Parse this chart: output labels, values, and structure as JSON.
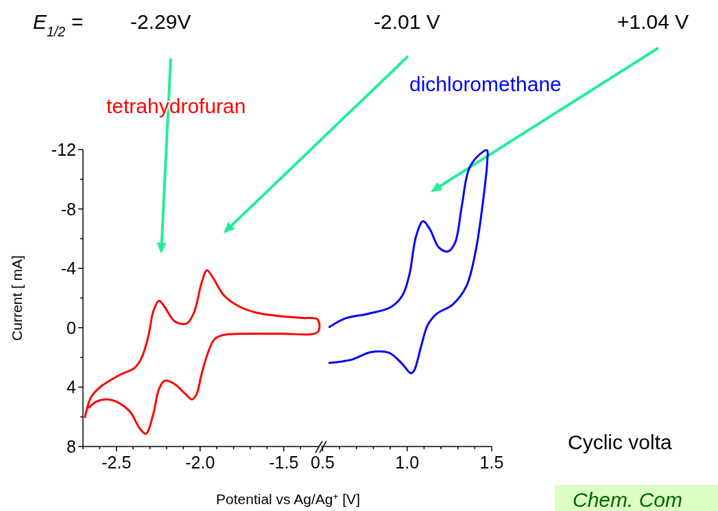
{
  "chart_data": [
    {
      "type": "line",
      "ylabel": "Current [ mA]",
      "xlim": [
        -2.7,
        -1.29
      ],
      "xticks": [
        {
          "value": -2.7,
          "label": null
        },
        {
          "value": -2.6,
          "label": null
        },
        -2.5,
        {
          "value": -2.4,
          "label": null
        },
        {
          "value": -2.3,
          "label": null
        },
        {
          "value": -2.2,
          "label": null
        },
        {
          "value": -2.1,
          "label": null
        },
        {
          "value": -2.0,
          "label": "-2.0"
        },
        {
          "value": -1.9,
          "label": null
        },
        {
          "value": -1.8,
          "label": null
        },
        {
          "value": -1.7,
          "label": null
        },
        {
          "value": -1.6,
          "label": null
        },
        -1.5,
        {
          "value": -1.4,
          "label": null
        }
      ],
      "ylim": [
        8,
        -12
      ],
      "yticks": [
        8,
        {
          "value": 6,
          "label": null
        },
        4,
        {
          "value": 2,
          "label": null
        },
        0,
        {
          "value": -2,
          "label": null
        },
        -4,
        {
          "value": -6,
          "label": null
        },
        -8,
        {
          "value": -10,
          "label": null
        },
        -12
      ],
      "series": [
        {
          "name": "tetrahydrofuran",
          "color": "#ff0000",
          "x": [
            -2.688,
            -2.65,
            -2.594,
            -2.487,
            -2.389,
            -2.348,
            -2.307,
            -2.28,
            -2.246,
            -2.212,
            -2.157,
            -2.102,
            -2.075,
            -2.034,
            -1.993,
            -1.959,
            -1.925,
            -1.857,
            -1.775,
            -1.666,
            -1.529,
            -1.392,
            -1.297,
            -1.297,
            -1.529,
            -1.857,
            -1.912,
            -1.953,
            -1.993,
            -2.02,
            -2.048,
            -2.089,
            -2.157,
            -2.212,
            -2.246,
            -2.28,
            -2.324,
            -2.362,
            -2.417,
            -2.485,
            -2.553,
            -2.622,
            -2.663
          ],
          "values": [
            6.02,
            4.64,
            3.97,
            3.22,
            2.68,
            1.99,
            0.45,
            -1.09,
            -1.82,
            -1.4,
            -0.48,
            -0.25,
            -0.32,
            -1.09,
            -2.94,
            -3.87,
            -3.4,
            -2.17,
            -1.48,
            -1.02,
            -0.79,
            -0.66,
            -0.55,
            0.29,
            0.4,
            0.48,
            0.75,
            1.68,
            3.22,
            4.45,
            4.83,
            4.45,
            3.76,
            3.57,
            4.14,
            5.83,
            7.14,
            6.76,
            5.68,
            5.07,
            4.83,
            4.99,
            5.37
          ]
        }
      ],
      "annotations": [
        "E$_{1/2}$ =",
        "-2.29V",
        "-2.01 V",
        "+1.04 V",
        "Cyclic volta",
        "Chem. Com"
      ]
    },
    {
      "type": "line",
      "xlabel": "Potential vs Ag/Ag$^{+}$ [V]",
      "xlim": [
        0.49,
        1.5
      ],
      "xticks": [
        0.5,
        {
          "value": 0.6,
          "label": null
        },
        {
          "value": 0.7,
          "label": null
        },
        {
          "value": 0.8,
          "label": null
        },
        {
          "value": 0.9,
          "label": null
        },
        {
          "value": 1.0,
          "label": "1.0"
        },
        {
          "value": 1.1,
          "label": null
        },
        {
          "value": 1.2,
          "label": null
        },
        {
          "value": 1.3,
          "label": null
        },
        {
          "value": 1.4,
          "label": null
        },
        1.5
      ],
      "ylim": [
        8,
        -12
      ],
      "tick_labels": "x",
      "series": [
        {
          "name": "dichloromethane",
          "color": "#0000ff",
          "x": [
            0.54,
            0.635,
            0.77,
            0.905,
            0.972,
            1.013,
            1.053,
            1.094,
            1.134,
            1.188,
            1.242,
            1.283,
            1.323,
            1.364,
            1.418,
            1.472,
            1.474,
            1.445,
            1.404,
            1.35,
            1.269,
            1.175,
            1.121,
            1.08,
            1.04,
            1.02,
            0.972,
            0.891,
            0.783,
            0.675,
            0.54
          ],
          "values": [
            -0.05,
            -0.63,
            -0.94,
            -1.4,
            -2.17,
            -3.56,
            -6.18,
            -7.17,
            -6.64,
            -5.4,
            -5.14,
            -5.71,
            -8.18,
            -10.64,
            -11.56,
            -11.95,
            -11.26,
            -8.18,
            -5.09,
            -2.79,
            -1.56,
            -0.94,
            -0.17,
            1.37,
            2.91,
            3.06,
            2.45,
            1.68,
            1.65,
            2.14,
            2.37
          ]
        }
      ]
    }
  ]
}
